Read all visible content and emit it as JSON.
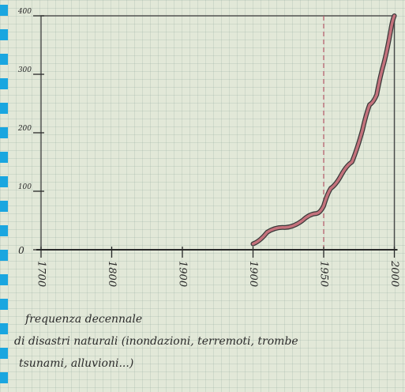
{
  "chart_data": {
    "type": "line",
    "title": "",
    "xlabel": "",
    "ylabel": "",
    "x_ticks": [
      "1700",
      "1800",
      "1900",
      "1900",
      "1950",
      "2000"
    ],
    "y_ticks": [
      0,
      100,
      200,
      300,
      400
    ],
    "ylim": [
      0,
      400
    ],
    "grid": true,
    "marker_line": {
      "tick_index": 4,
      "style": "dashed",
      "color": "#b85a6a"
    },
    "series": [
      {
        "color": "#c4727c",
        "points": [
          [
            3.0,
            10
          ],
          [
            3.2,
            30
          ],
          [
            3.45,
            38
          ],
          [
            3.7,
            50
          ],
          [
            3.9,
            62
          ],
          [
            4.0,
            75
          ],
          [
            4.1,
            105
          ],
          [
            4.25,
            128
          ],
          [
            4.4,
            150
          ],
          [
            4.55,
            205
          ],
          [
            4.65,
            248
          ],
          [
            4.75,
            265
          ],
          [
            4.85,
            318
          ],
          [
            4.95,
            376
          ],
          [
            5.0,
            400
          ]
        ]
      }
    ],
    "caption_lines": [
      "frequenza decennale",
      "di disastri naturali (inondazioni, terremoti, trombe",
      "tsunami, alluvioni...)"
    ]
  },
  "colors": {
    "paper": "#e2e8d8",
    "ink": "#2a2a2a",
    "series": "#c4727c",
    "binder": "#1aa6e0"
  }
}
